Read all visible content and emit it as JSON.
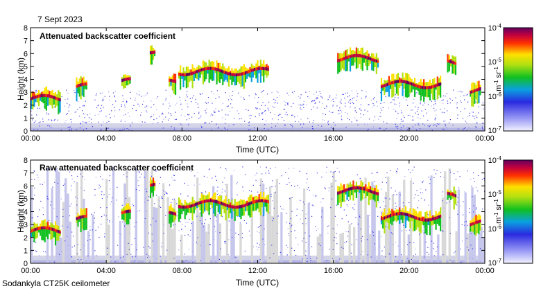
{
  "date_label": "7 Sept 2023",
  "footer": "Sodankyla CT25K ceilometer",
  "colorbar": {
    "unit_base": "m",
    "unit_exp1": "-1",
    "unit_mid": " sr",
    "unit_exp2": "-1",
    "ticks": [
      {
        "base": "10",
        "exp": "-4"
      },
      {
        "base": "10",
        "exp": "-5"
      },
      {
        "base": "10",
        "exp": "-6"
      },
      {
        "base": "10",
        "exp": "-7"
      }
    ]
  },
  "chart_data": [
    {
      "type": "heatmap",
      "title": "Attenuated backscatter coefficient",
      "xlabel": "Time (UTC)",
      "ylabel": "Height (km)",
      "xlim": [
        0,
        24
      ],
      "ylim": [
        0,
        8
      ],
      "xticks": [
        "00:00",
        "04:00",
        "08:00",
        "12:00",
        "16:00",
        "20:00",
        "00:00"
      ],
      "yticks": [
        "0",
        "1",
        "2",
        "3",
        "4",
        "5",
        "6",
        "7",
        "8"
      ],
      "colorscale_log_range": [
        -7,
        -4
      ],
      "cloud_layers": [
        {
          "start_h": 0.0,
          "end_h": 1.6,
          "height_km": 2.5
        },
        {
          "start_h": 2.4,
          "end_h": 3.0,
          "height_km": 3.4
        },
        {
          "start_h": 4.8,
          "end_h": 5.3,
          "height_km": 3.8
        },
        {
          "start_h": 6.3,
          "end_h": 6.6,
          "height_km": 6.3
        },
        {
          "start_h": 7.3,
          "end_h": 7.7,
          "height_km": 3.7
        },
        {
          "start_h": 7.8,
          "end_h": 12.6,
          "height_km": 4.6
        },
        {
          "start_h": 16.2,
          "end_h": 18.4,
          "height_km": 5.6
        },
        {
          "start_h": 18.5,
          "end_h": 21.7,
          "height_km": 3.6
        },
        {
          "start_h": 22.0,
          "end_h": 22.5,
          "height_km": 5.2
        },
        {
          "start_h": 23.2,
          "end_h": 23.8,
          "height_km": 3.1
        }
      ]
    },
    {
      "type": "heatmap",
      "title": "Raw attenuated backscatter coefficient",
      "xlabel": "Time (UTC)",
      "ylabel": "Height (km)",
      "xlim": [
        0,
        24
      ],
      "ylim": [
        0,
        8
      ],
      "xticks": [
        "00:00",
        "04:00",
        "08:00",
        "12:00",
        "16:00",
        "20:00",
        "00:00"
      ],
      "yticks": [
        "0",
        "1",
        "2",
        "3",
        "4",
        "5",
        "6",
        "7",
        "8"
      ],
      "colorscale_log_range": [
        -7,
        -4
      ],
      "cloud_layers": [
        {
          "start_h": 0.0,
          "end_h": 1.6,
          "height_km": 2.5
        },
        {
          "start_h": 2.4,
          "end_h": 3.0,
          "height_km": 3.4
        },
        {
          "start_h": 4.8,
          "end_h": 5.3,
          "height_km": 3.8
        },
        {
          "start_h": 6.3,
          "end_h": 6.6,
          "height_km": 6.3
        },
        {
          "start_h": 7.3,
          "end_h": 7.7,
          "height_km": 3.7
        },
        {
          "start_h": 7.8,
          "end_h": 12.6,
          "height_km": 4.6
        },
        {
          "start_h": 16.2,
          "end_h": 18.4,
          "height_km": 5.6
        },
        {
          "start_h": 18.5,
          "end_h": 21.7,
          "height_km": 3.6
        },
        {
          "start_h": 22.0,
          "end_h": 22.5,
          "height_km": 5.2
        },
        {
          "start_h": 23.2,
          "end_h": 23.8,
          "height_km": 3.1
        }
      ]
    }
  ]
}
